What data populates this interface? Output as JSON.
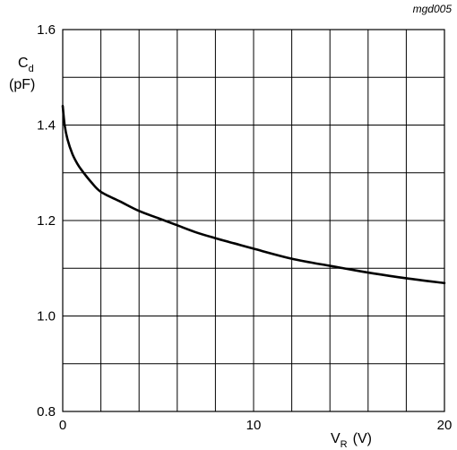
{
  "figure_ref": "mgd005",
  "chart_data": {
    "type": "line",
    "ylabel_symbol": "C",
    "ylabel_subscript": "d",
    "ylabel_unit": "(pF)",
    "xlabel_symbol": "V",
    "xlabel_subscript": "R",
    "xlabel_unit": "(V)",
    "xlim": [
      0,
      20
    ],
    "ylim": [
      0.8,
      1.6
    ],
    "grid": true,
    "x_ticks": [
      {
        "value": 0,
        "label": "0"
      },
      {
        "value": 10,
        "label": "10"
      },
      {
        "value": 20,
        "label": "20"
      }
    ],
    "y_ticks": [
      {
        "value": 0.8,
        "label": "0.8"
      },
      {
        "value": 1.0,
        "label": "1.0"
      },
      {
        "value": 1.2,
        "label": "1.2"
      },
      {
        "value": 1.4,
        "label": "1.4"
      },
      {
        "value": 1.6,
        "label": "1.6"
      }
    ],
    "x_grid_step": 2,
    "y_grid_step": 0.1,
    "series": [
      {
        "x": [
          0,
          0.1,
          0.25,
          0.5,
          0.75,
          1,
          1.5,
          2,
          3,
          4,
          5,
          6,
          7,
          8,
          9,
          10,
          12,
          14,
          15,
          16,
          18,
          20
        ],
        "y": [
          1.44,
          1.4,
          1.37,
          1.34,
          1.32,
          1.305,
          1.28,
          1.26,
          1.24,
          1.22,
          1.205,
          1.19,
          1.175,
          1.163,
          1.152,
          1.141,
          1.12,
          1.105,
          1.098,
          1.091,
          1.079,
          1.069
        ]
      }
    ]
  }
}
